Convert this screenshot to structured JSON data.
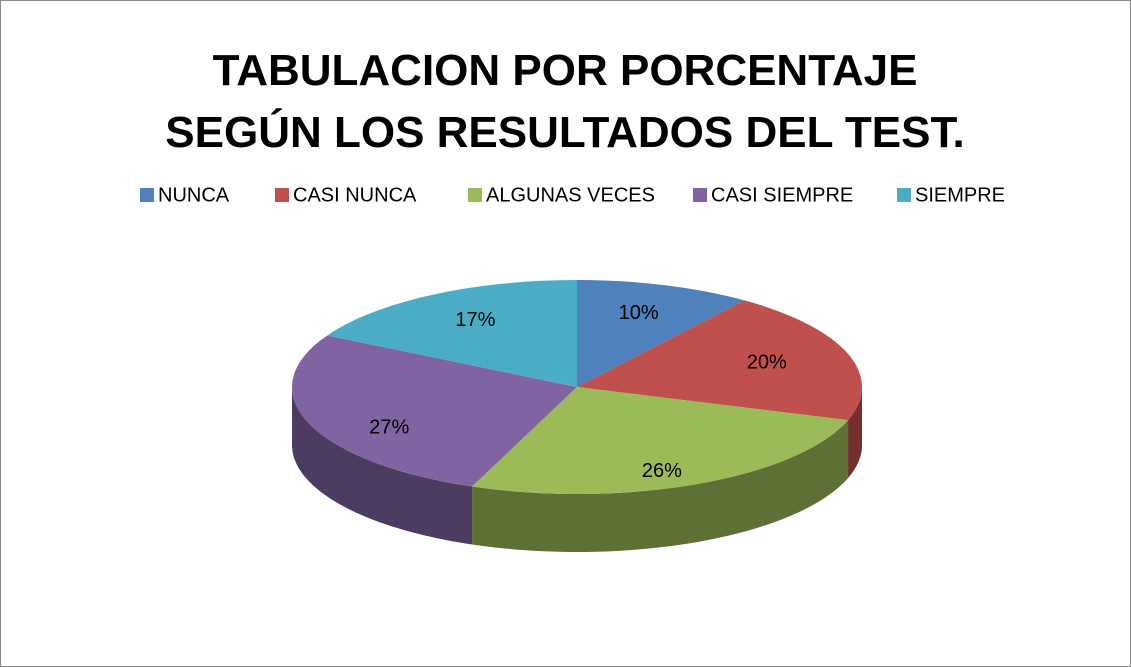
{
  "chart_data": {
    "type": "pie",
    "title": "TABULACION POR PORCENTAJE SEGÚN LOS RESULTADOS DEL TEST.",
    "categories": [
      "NUNCA",
      "CASI NUNCA",
      "ALGUNAS VECES",
      "CASI SIEMPRE",
      "SIEMPRE"
    ],
    "values": [
      10,
      20,
      26,
      27,
      17
    ],
    "value_labels": [
      "10%",
      "20%",
      "26%",
      "27%",
      "17%"
    ],
    "colors": [
      "#4f81bd",
      "#c0504d",
      "#9bbb59",
      "#8064a2",
      "#4bacc6"
    ],
    "legend": "top"
  }
}
